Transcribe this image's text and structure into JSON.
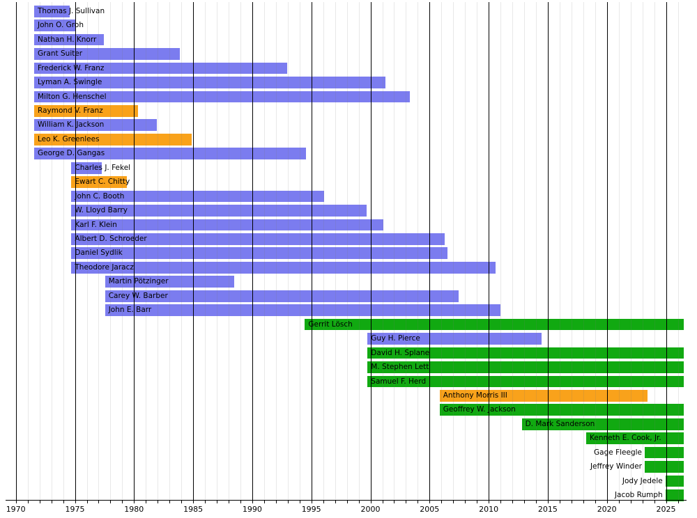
{
  "chart_data": {
    "type": "timeline",
    "title": "",
    "xlabel": "",
    "ylabel": "",
    "axis": {
      "unit": "year",
      "range": [
        1969.2,
        2026.7
      ],
      "tick_label_years": [
        1970,
        1975,
        1980,
        1985,
        1990,
        1995,
        2000,
        2005,
        2010,
        2015,
        2020,
        2025
      ],
      "minor_grid_step": 1,
      "major_grid_step": 5,
      "grid": "on",
      "legend": "none"
    },
    "present_end_year": 2026.5,
    "colors": {
      "blue": "#7B7CEF",
      "orange": "#F9A21B",
      "green": "#11A911",
      "bar_text": "#000000",
      "axis_text": "#000000",
      "major_grid": "#000000",
      "minor_grid": "rgba(120,120,120,0.17)",
      "background": "#ffffff"
    },
    "members": [
      {
        "name": "Thomas J. Sullivan",
        "start": 1971.55,
        "end": 1974.55,
        "color": "blue"
      },
      {
        "name": "John O. Groh",
        "start": 1971.55,
        "end": 1975.1,
        "color": "blue"
      },
      {
        "name": "Nathan H. Knorr",
        "start": 1971.55,
        "end": 1977.45,
        "color": "blue"
      },
      {
        "name": "Grant Suiter",
        "start": 1971.55,
        "end": 1983.85,
        "color": "blue"
      },
      {
        "name": "Frederick W. Franz",
        "start": 1971.55,
        "end": 1992.97,
        "color": "blue"
      },
      {
        "name": "Lyman A. Swingle",
        "start": 1971.55,
        "end": 2001.25,
        "color": "blue"
      },
      {
        "name": "Milton G. Henschel",
        "start": 1971.55,
        "end": 2003.3,
        "color": "blue"
      },
      {
        "name": "Raymond V. Franz",
        "start": 1971.55,
        "end": 1980.35,
        "color": "orange"
      },
      {
        "name": "William K. Jackson",
        "start": 1971.55,
        "end": 1981.9,
        "color": "blue"
      },
      {
        "name": "Leo K. Greenlees",
        "start": 1971.55,
        "end": 1984.9,
        "color": "orange"
      },
      {
        "name": "George D. Gangas",
        "start": 1971.55,
        "end": 1994.55,
        "color": "blue"
      },
      {
        "name": "Charles J. Fekel",
        "start": 1974.7,
        "end": 1977.25,
        "color": "blue"
      },
      {
        "name": "Ewart C. Chitty",
        "start": 1974.7,
        "end": 1979.4,
        "color": "orange"
      },
      {
        "name": "John C. Booth",
        "start": 1974.7,
        "end": 1996.1,
        "color": "blue"
      },
      {
        "name": "W. Lloyd Barry",
        "start": 1974.7,
        "end": 1999.65,
        "color": "blue"
      },
      {
        "name": "Karl F. Klein",
        "start": 1974.7,
        "end": 2001.1,
        "color": "blue"
      },
      {
        "name": "Albert D. Schroeder",
        "start": 1974.7,
        "end": 2006.3,
        "color": "blue"
      },
      {
        "name": "Daniel Sydlik",
        "start": 1974.7,
        "end": 2006.5,
        "color": "blue"
      },
      {
        "name": "Theodore Jaracz",
        "start": 1974.7,
        "end": 2010.6,
        "color": "blue"
      },
      {
        "name": "Martin Pötzinger",
        "start": 1977.55,
        "end": 1988.45,
        "color": "blue"
      },
      {
        "name": "Carey W. Barber",
        "start": 1977.55,
        "end": 2007.45,
        "color": "blue"
      },
      {
        "name": "John E. Barr",
        "start": 1977.55,
        "end": 2011.0,
        "color": "blue"
      },
      {
        "name": "Gerrit Lösch",
        "start": 1994.45,
        "end": "present",
        "color": "green"
      },
      {
        "name": "Guy H. Pierce",
        "start": 1999.75,
        "end": 2014.45,
        "color": "blue"
      },
      {
        "name": "David H. Splane",
        "start": 1999.75,
        "end": "present",
        "color": "green"
      },
      {
        "name": "M. Stephen Lett",
        "start": 1999.75,
        "end": "present",
        "color": "green"
      },
      {
        "name": "Samuel F. Herd",
        "start": 1999.75,
        "end": "present",
        "color": "green"
      },
      {
        "name": "Anthony Morris III",
        "start": 2005.85,
        "end": 2023.45,
        "color": "orange"
      },
      {
        "name": "Geoffrey W. Jackson",
        "start": 2005.85,
        "end": "present",
        "color": "green"
      },
      {
        "name": "D. Mark Sanderson",
        "start": 2012.8,
        "end": "present",
        "color": "green"
      },
      {
        "name": "Kenneth E. Cook, Jr.",
        "start": 2018.25,
        "end": "present",
        "color": "green"
      },
      {
        "name": "Gage Fleegle",
        "start": 2023.2,
        "end": "present",
        "color": "green",
        "label_position": "before"
      },
      {
        "name": "Jeffrey Winder",
        "start": 2023.2,
        "end": "present",
        "color": "green",
        "label_position": "before"
      },
      {
        "name": "Jody Jedele",
        "start": 2024.95,
        "end": "present",
        "color": "green",
        "label_position": "before"
      },
      {
        "name": "Jacob Rumph",
        "start": 2024.95,
        "end": "present",
        "color": "green",
        "label_position": "before"
      }
    ]
  }
}
